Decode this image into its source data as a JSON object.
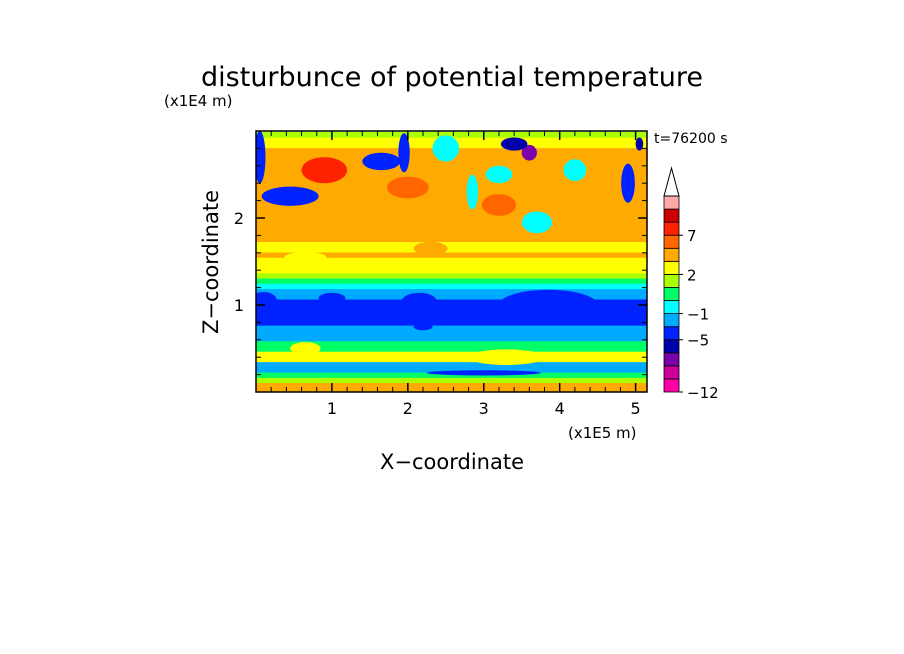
{
  "chart_data": {
    "type": "heatmap",
    "title": "disturbunce of potential temperature",
    "time_label": "t=76200 s",
    "xlabel": "X−coordinate",
    "ylabel": "Z−coordinate",
    "x_unit": "(x1E5 m)",
    "y_unit": "(x1E4 m)",
    "xlim": [
      0,
      5.15
    ],
    "ylim": [
      0,
      3.0
    ],
    "x_ticks": [
      1,
      2,
      3,
      4,
      5
    ],
    "x_tick_labels": [
      "1",
      "2",
      "3",
      "4",
      "5"
    ],
    "y_ticks": [
      1,
      2
    ],
    "y_tick_labels": [
      "1",
      "2"
    ],
    "colorbar": {
      "levels": [
        -12,
        -11,
        -9,
        -7,
        -5,
        -3,
        -1,
        0,
        1,
        2,
        3,
        5,
        7,
        9,
        11
      ],
      "colors": [
        "#ff00aa",
        "#cc0099",
        "#7a00aa",
        "#0000aa",
        "#0022ff",
        "#00aaff",
        "#00ffff",
        "#00ff66",
        "#aaff00",
        "#ffff00",
        "#ffaa00",
        "#ff6600",
        "#ff2200",
        "#cc0000",
        "#ffaaaa"
      ],
      "tick_labels": [
        {
          "level": -12,
          "text": "−12"
        },
        {
          "level": -5,
          "text": "−5"
        },
        {
          "level": -1,
          "text": "−1"
        },
        {
          "level": 2,
          "text": "2"
        },
        {
          "level": 7,
          "text": "7"
        }
      ],
      "extend": "max",
      "extend_color": "#ffffff"
    },
    "bands": [
      {
        "z": 0.02,
        "value": 4
      },
      {
        "z": 0.08,
        "value": 3.2
      },
      {
        "z": 0.14,
        "value": 1.6
      },
      {
        "z": 0.2,
        "value": 0.5
      },
      {
        "z": 0.26,
        "value": -2
      },
      {
        "z": 0.32,
        "value": -1.5
      },
      {
        "z": 0.38,
        "value": 2
      },
      {
        "z": 0.44,
        "value": 2
      },
      {
        "z": 0.5,
        "value": 0.6
      },
      {
        "z": 0.56,
        "value": 0.5
      },
      {
        "z": 0.62,
        "value": -1.5
      },
      {
        "z": 0.68,
        "value": -2
      },
      {
        "z": 0.74,
        "value": -2.5
      },
      {
        "z": 0.8,
        "value": -3.4
      },
      {
        "z": 0.86,
        "value": -3.2
      },
      {
        "z": 0.92,
        "value": -3.5
      },
      {
        "z": 0.98,
        "value": -4
      },
      {
        "z": 1.04,
        "value": -3.6
      },
      {
        "z": 1.1,
        "value": -3
      },
      {
        "z": 1.16,
        "value": -2
      },
      {
        "z": 1.22,
        "value": -1
      },
      {
        "z": 1.28,
        "value": 0.5
      },
      {
        "z": 1.34,
        "value": 1.2
      },
      {
        "z": 1.4,
        "value": 2
      },
      {
        "z": 1.46,
        "value": 2.4
      },
      {
        "z": 1.52,
        "value": 2.8
      },
      {
        "z": 1.58,
        "value": 3
      },
      {
        "z": 1.64,
        "value": 2.2
      },
      {
        "z": 1.7,
        "value": 2.5
      },
      {
        "z": 1.76,
        "value": 3
      },
      {
        "z": 1.82,
        "value": 3.4
      },
      {
        "z": 1.88,
        "value": 3.6
      },
      {
        "z": 1.94,
        "value": 3.4
      },
      {
        "z": 2.0,
        "value": 3.0
      },
      {
        "z": 2.06,
        "value": 3.2
      },
      {
        "z": 2.12,
        "value": 3.5
      },
      {
        "z": 2.18,
        "value": 3.8
      },
      {
        "z": 2.24,
        "value": 4
      },
      {
        "z": 2.3,
        "value": 4.2
      },
      {
        "z": 2.36,
        "value": 4.5
      },
      {
        "z": 2.42,
        "value": 4.8
      },
      {
        "z": 2.48,
        "value": 4.6
      },
      {
        "z": 2.54,
        "value": 4.2
      },
      {
        "z": 2.6,
        "value": 3.8
      },
      {
        "z": 2.66,
        "value": 3.4
      },
      {
        "z": 2.72,
        "value": 3.2
      },
      {
        "z": 2.78,
        "value": 3
      },
      {
        "z": 2.84,
        "value": 2.6
      },
      {
        "z": 2.9,
        "value": 2.2
      },
      {
        "z": 2.96,
        "value": 1.8
      }
    ],
    "anomalies": [
      {
        "x": 0.45,
        "z": 2.25,
        "w": 0.75,
        "h": 0.22,
        "value": -5
      },
      {
        "x": 0.05,
        "z": 2.7,
        "w": 0.15,
        "h": 0.6,
        "value": -5
      },
      {
        "x": 1.65,
        "z": 2.65,
        "w": 0.5,
        "h": 0.2,
        "value": -5
      },
      {
        "x": 1.95,
        "z": 2.75,
        "w": 0.15,
        "h": 0.45,
        "value": -5
      },
      {
        "x": 2.5,
        "z": 2.8,
        "w": 0.35,
        "h": 0.3,
        "value": -1
      },
      {
        "x": 3.2,
        "z": 2.5,
        "w": 0.35,
        "h": 0.2,
        "value": -1
      },
      {
        "x": 3.6,
        "z": 2.75,
        "w": 0.2,
        "h": 0.18,
        "value": -9
      },
      {
        "x": 3.4,
        "z": 2.85,
        "w": 0.35,
        "h": 0.15,
        "value": -7
      },
      {
        "x": 4.9,
        "z": 2.4,
        "w": 0.18,
        "h": 0.45,
        "value": -5
      },
      {
        "x": 5.05,
        "z": 2.85,
        "w": 0.1,
        "h": 0.15,
        "value": -7
      },
      {
        "x": 4.2,
        "z": 2.55,
        "w": 0.3,
        "h": 0.25,
        "value": -1
      },
      {
        "x": 0.9,
        "z": 2.55,
        "w": 0.6,
        "h": 0.3,
        "value": 7
      },
      {
        "x": 2.0,
        "z": 2.35,
        "w": 0.55,
        "h": 0.25,
        "value": 5
      },
      {
        "x": 3.2,
        "z": 2.15,
        "w": 0.45,
        "h": 0.25,
        "value": 5
      },
      {
        "x": 4.3,
        "z": 2.2,
        "w": 0.55,
        "h": 0.25,
        "value": 3
      },
      {
        "x": 2.85,
        "z": 2.3,
        "w": 0.15,
        "h": 0.4,
        "value": -1
      },
      {
        "x": 3.7,
        "z": 1.95,
        "w": 0.4,
        "h": 0.25,
        "value": -1
      },
      {
        "x": 0.1,
        "z": 1.05,
        "w": 0.35,
        "h": 0.2,
        "value": -5
      },
      {
        "x": 1.0,
        "z": 1.08,
        "w": 0.35,
        "h": 0.12,
        "value": -5
      },
      {
        "x": 2.15,
        "z": 1.05,
        "w": 0.45,
        "h": 0.18,
        "value": -5
      },
      {
        "x": 3.85,
        "z": 1.0,
        "w": 1.3,
        "h": 0.35,
        "value": -5
      },
      {
        "x": 3.4,
        "z": 0.95,
        "w": 0.6,
        "h": 0.2,
        "value": -4
      },
      {
        "x": 2.2,
        "z": 0.75,
        "w": 0.25,
        "h": 0.08,
        "value": -5
      },
      {
        "x": 3.0,
        "z": 0.22,
        "w": 1.5,
        "h": 0.06,
        "value": -5
      },
      {
        "x": 3.3,
        "z": 0.4,
        "w": 1.0,
        "h": 0.18,
        "value": 2
      },
      {
        "x": 0.65,
        "z": 0.5,
        "w": 0.4,
        "h": 0.15,
        "value": 2
      },
      {
        "x": 2.3,
        "z": 1.65,
        "w": 0.45,
        "h": 0.15,
        "value": 3
      },
      {
        "x": 0.65,
        "z": 1.55,
        "w": 0.55,
        "h": 0.12,
        "value": 2
      }
    ]
  }
}
